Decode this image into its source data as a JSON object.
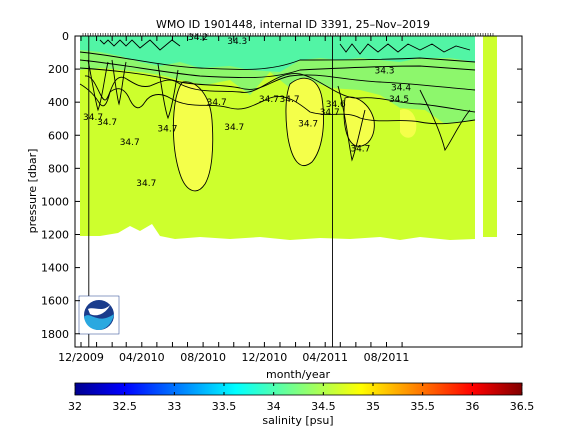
{
  "chart_data": {
    "type": "heatmap",
    "title": "WMO ID 1901448, internal ID 3391, 25–Nov–2019",
    "xlabel": "month/year",
    "ylabel": "pressure [dbar]",
    "colorbar_label": "salinity [psu]",
    "x_ticks": [
      "12/2009",
      "04/2010",
      "08/2010",
      "12/2010",
      "04/2011",
      "08/2011"
    ],
    "y_ticks": [
      "0",
      "200",
      "400",
      "600",
      "800",
      "1000",
      "1200",
      "1400",
      "1600",
      "1800"
    ],
    "ylim": [
      1880,
      0
    ],
    "y_reversed": true,
    "colorbar": {
      "ticks": [
        "32",
        "32.5",
        "33",
        "33.5",
        "34",
        "34.5",
        "35",
        "35.5",
        "36",
        "36.5"
      ],
      "range": [
        32,
        36.5
      ],
      "colormap": "jet"
    },
    "colors": {
      "deep_field": "#cdff2d",
      "core_high": "#f4ff4a",
      "surface_low": "#52f5a5",
      "upper_band": "#8df76c",
      "contour": "#000000"
    },
    "contour_labels": [
      {
        "text": "34.7",
        "x": "2009-12-25",
        "y": 490
      },
      {
        "text": "34.7",
        "x": "2010-01-22",
        "y": 520
      },
      {
        "text": "34.7",
        "x": "2010-03-08",
        "y": 640
      },
      {
        "text": "34.7",
        "x": "2010-05-22",
        "y": 560
      },
      {
        "text": "34.7",
        "x": "2010-04-10",
        "y": 890
      },
      {
        "text": "34.2",
        "x": "2010-07-22",
        "y": 5
      },
      {
        "text": "34.7",
        "x": "2010-08-28",
        "y": 400
      },
      {
        "text": "34.7",
        "x": "2010-10-02",
        "y": 550
      },
      {
        "text": "34.3",
        "x": "2010-10-08",
        "y": 30
      },
      {
        "text": "34.7",
        "x": "2010-12-10",
        "y": 380
      },
      {
        "text": "34.7",
        "x": "2011-01-20",
        "y": 380
      },
      {
        "text": "34.7",
        "x": "2011-02-26",
        "y": 530
      },
      {
        "text": "34.7",
        "x": "2011-04-10",
        "y": 460
      },
      {
        "text": "34.6",
        "x": "2011-04-22",
        "y": 410
      },
      {
        "text": "34.7",
        "x": "2011-06-10",
        "y": 680
      },
      {
        "text": "34.3",
        "x": "2011-07-28",
        "y": 210
      },
      {
        "text": "34.4",
        "x": "2011-08-30",
        "y": 310
      },
      {
        "text": "34.5",
        "x": "2011-08-26",
        "y": 380
      }
    ],
    "event_lines": [
      "2009-12-25",
      "2010-12-18"
    ],
    "logo": "NOAA"
  }
}
